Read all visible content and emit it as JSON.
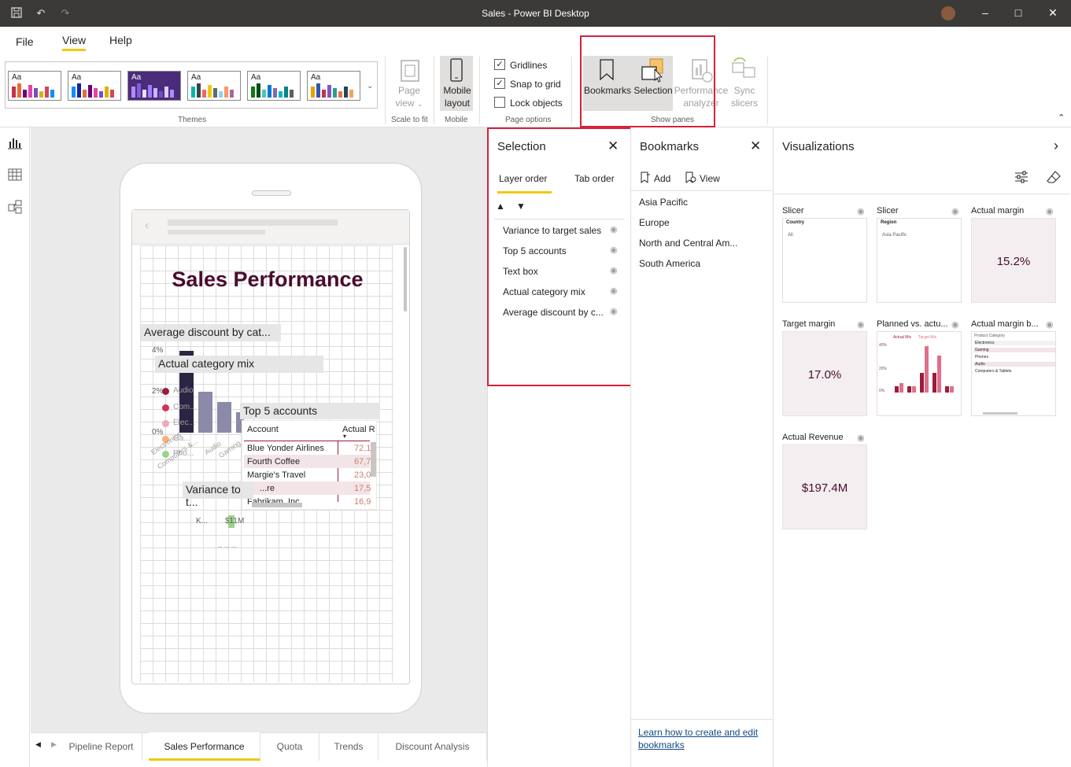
{
  "window": {
    "title": "Sales - Power BI Desktop"
  },
  "menu": {
    "file": "File",
    "view": "View",
    "help": "Help"
  },
  "ribbon": {
    "theme_aa": "Aa",
    "themes_label": "Themes",
    "page_view": {
      "line1": "Page",
      "line2": "view"
    },
    "scale_to_fit_label": "Scale to fit",
    "mobile_layout": {
      "line1": "Mobile",
      "line2": "layout"
    },
    "mobile_label": "Mobile",
    "gridlines": "Gridlines",
    "snap_to_grid": "Snap to grid",
    "lock_objects": "Lock objects",
    "page_options_label": "Page options",
    "bookmarks": "Bookmarks",
    "selection": "Selection",
    "performance_analyzer": {
      "line1": "Performance",
      "line2": "analyzer"
    },
    "sync_slicers": {
      "line1": "Sync",
      "line2": "slicers"
    },
    "show_panes_label": "Show panes"
  },
  "canvas": {
    "report_title": "Sales Performance",
    "visual_labels": {
      "avg_discount": "Average discount by cat...",
      "category_mix": "Actual category mix",
      "top5": "Top 5 accounts",
      "variance": "Variance to t..."
    },
    "axis_ticks": [
      "4%",
      "2%",
      "0%"
    ],
    "legend_items": [
      "Audio",
      "Com...",
      "Elec...",
      "Ga...",
      "Pho..."
    ],
    "axis_cats": [
      "Electronics",
      "Computers &...",
      "Audio",
      "Gaming"
    ],
    "table": {
      "headers": [
        "Account",
        "Actual R"
      ],
      "rows": [
        [
          "Blue Yonder Airlines",
          "72,1"
        ],
        [
          "Fourth Coffee",
          "67,7"
        ],
        [
          "Margie's Travel",
          "23,0"
        ],
        [
          "...re",
          "17,5"
        ],
        [
          "Fabrikam, Inc",
          "16,9"
        ]
      ]
    },
    "variance_texts": [
      "K...",
      "$11M",
      "... ... ..."
    ]
  },
  "pages": {
    "tabs": [
      "Pipeline Report",
      "Sales Performance",
      "Quota",
      "Trends",
      "Discount Analysis"
    ],
    "active": "Sales Performance"
  },
  "selection_pane": {
    "title": "Selection",
    "tabs": [
      "Layer order",
      "Tab order"
    ],
    "items": [
      "Variance to target sales",
      "Top 5 accounts",
      "Text box",
      "Actual category mix",
      "Average discount by c..."
    ]
  },
  "bookmarks_pane": {
    "title": "Bookmarks",
    "add": "Add",
    "view": "View",
    "items": [
      "Asia Pacific",
      "Europe",
      "North and Central Am...",
      "South America"
    ],
    "help_link": "Learn how to create and edit bookmarks"
  },
  "visualizations": {
    "title": "Visualizations",
    "cards": [
      {
        "title": "Slicer",
        "field": "Country",
        "value": "All"
      },
      {
        "title": "Slicer",
        "field": "Region",
        "value": "Asia Pacific"
      },
      {
        "title": "Actual margin",
        "value": "15.2%"
      },
      {
        "title": "Target margin",
        "value": "17.0%"
      },
      {
        "title": "Planned vs. actu...",
        "legend": [
          "Actual Mix",
          "Target Mix"
        ],
        "ticks": [
          "40%",
          "20%",
          "0%"
        ]
      },
      {
        "title": "Actual margin b...",
        "header": "Product Category",
        "rows": [
          "Electronics",
          "Gaming",
          "Phones",
          "Audio",
          "Computers & Tablets"
        ]
      },
      {
        "title": "Actual Revenue",
        "value": "$197.4M"
      }
    ]
  },
  "colors": {
    "accent": "#f2c811",
    "highlight_box": "#d7213b",
    "titlebar": "#3b3a39",
    "kpi_text": "#4a0c2c",
    "bar_dark": "#2b2442",
    "bar_light": "#8b8aa8"
  }
}
